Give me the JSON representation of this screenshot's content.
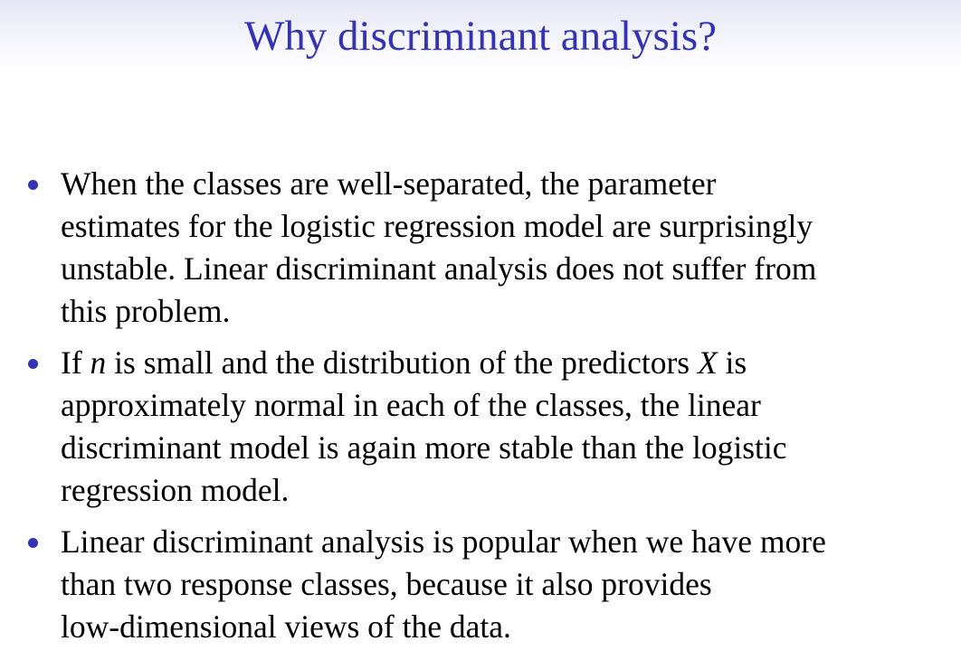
{
  "slide": {
    "title": "Why discriminant analysis?",
    "bullets": [
      {
        "lines": [
          [
            "When the classes are well-separated, the parameter"
          ],
          [
            "estimates for the logistic regression model are surprisingly"
          ],
          [
            "unstable. Linear discriminant analysis does not suffer from"
          ],
          [
            "this problem."
          ]
        ]
      },
      {
        "lines": [
          [
            "If ",
            {
              "math": "n"
            },
            " is small and the distribution of the predictors ",
            {
              "math": "X"
            },
            " is"
          ],
          [
            "approximately normal in each of the classes, the linear"
          ],
          [
            "discriminant model is again more stable than the logistic"
          ],
          [
            "regression model."
          ]
        ]
      },
      {
        "lines": [
          [
            "Linear discriminant analysis is popular when we have more"
          ],
          [
            "than two response classes, because it also provides"
          ],
          [
            "low-dimensional views of the data."
          ]
        ]
      }
    ],
    "colors": {
      "title": "#3333b3",
      "bullet": "#3333b3",
      "header_gradient_top": "#e6e6f5"
    }
  }
}
